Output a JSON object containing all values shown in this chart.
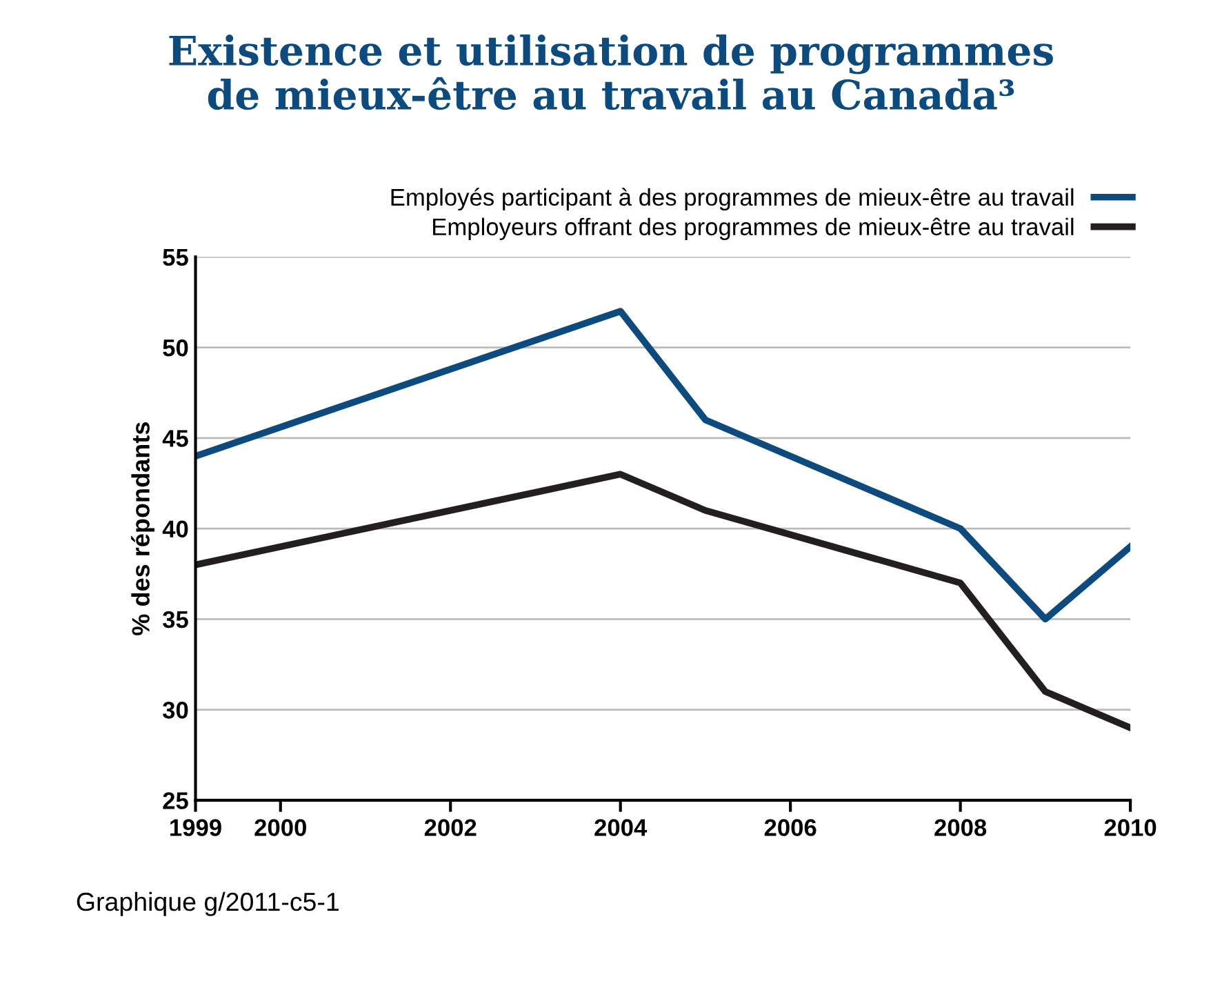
{
  "chart_data": {
    "type": "line",
    "title": "Existence et utilisation de programmes\nde mieux-être au travail au Canada³",
    "ylabel": "% des répondants",
    "x": [
      1999,
      2004,
      2005,
      2008,
      2009,
      2010
    ],
    "series": [
      {
        "name": "Employés participant à des programmes de mieux-être au travail",
        "color": "#0d4a7e",
        "values": [
          44,
          52,
          46,
          40,
          35,
          39
        ]
      },
      {
        "name": "Employeurs offrant des programmes de mieux-être au travail",
        "color": "#231f20",
        "values": [
          38,
          43,
          41,
          37,
          31,
          29
        ]
      }
    ],
    "xlim": [
      1999,
      2010
    ],
    "xticks": [
      1999,
      2000,
      2002,
      2004,
      2006,
      2008,
      2010
    ],
    "ylim": [
      25,
      55
    ],
    "yticks": [
      25,
      30,
      35,
      40,
      45,
      50,
      55
    ],
    "grid": "y",
    "legend": "top right",
    "marker": "none",
    "line_style": "solid",
    "annotations": [
      "Graphique g/2011-c5-1"
    ]
  }
}
